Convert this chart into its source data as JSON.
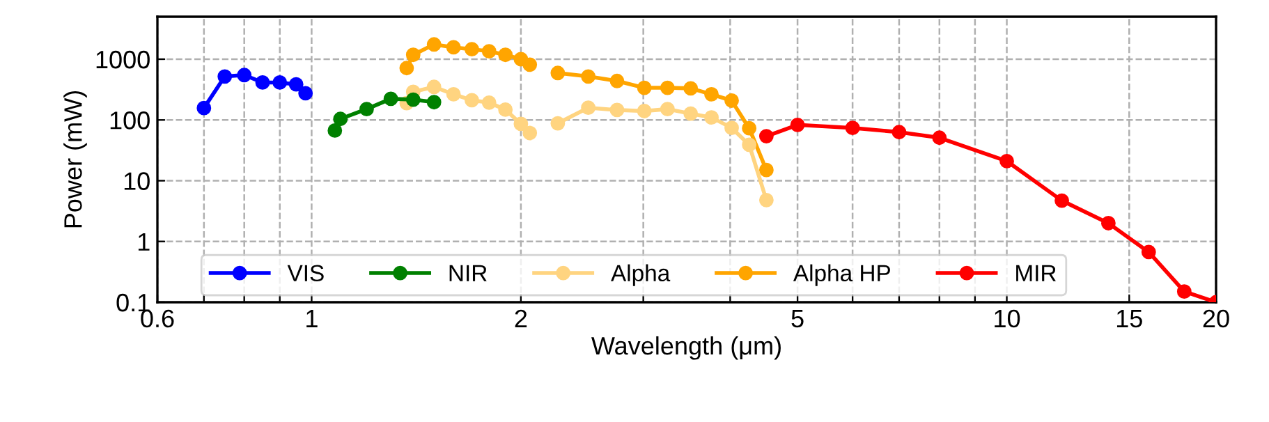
{
  "chart_data": {
    "type": "line",
    "xlabel": "Wavelength (μm)",
    "ylabel": "Power (mW)",
    "log": "xy",
    "marker": "circle",
    "line_style": "solid",
    "grid": true,
    "legend": "bottom",
    "xlim": [
      0.6,
      20
    ],
    "ylim": [
      0.1,
      5000
    ],
    "xticks": [
      0.6,
      {
        "value": 0.7,
        "label": null
      },
      {
        "value": 0.8,
        "label": null
      },
      {
        "value": 0.9,
        "label": null
      },
      1,
      2,
      {
        "value": 3,
        "label": null
      },
      {
        "value": 4,
        "label": null
      },
      5,
      {
        "value": 6,
        "label": null
      },
      {
        "value": 7,
        "label": null
      },
      {
        "value": 8,
        "label": null
      },
      {
        "value": 9,
        "label": null
      },
      10,
      15,
      20
    ],
    "yticks": [
      0.1,
      1,
      10,
      100,
      1000
    ],
    "series": [
      {
        "name": "VIS",
        "color": "#0000ff",
        "x": [
          0.7,
          0.75,
          0.8,
          0.85,
          0.9,
          0.95,
          0.98
        ],
        "values": [
          157,
          519,
          548,
          414,
          414,
          385,
          275
        ]
      },
      {
        "name": "NIR",
        "color": "#008000",
        "x": [
          1.08,
          1.1,
          1.2,
          1.3,
          1.4,
          1.5
        ],
        "values": [
          67,
          104,
          151,
          223,
          216,
          196
        ]
      },
      {
        "name": "Alpha",
        "color": "#ffd480",
        "x": [
          1.37,
          1.4,
          1.5,
          1.6,
          1.7,
          1.8,
          1.9,
          2.0,
          2.06,
          null,
          2.26,
          2.5,
          2.75,
          3.01,
          3.25,
          3.51,
          3.76,
          4.02,
          4.26,
          4.51
        ],
        "values": [
          189,
          290,
          350,
          264,
          211,
          193,
          148,
          86,
          61,
          null,
          88,
          159,
          146,
          140,
          151,
          127,
          110,
          74,
          39,
          4.8
        ]
      },
      {
        "name": "Alpha HP",
        "color": "#ffa500",
        "x": [
          1.37,
          1.4,
          1.5,
          1.6,
          1.7,
          1.8,
          1.9,
          2.0,
          2.06,
          null,
          2.26,
          2.5,
          2.75,
          3.01,
          3.25,
          3.51,
          3.76,
          4.02,
          4.26,
          4.51
        ],
        "values": [
          714,
          1180,
          1750,
          1570,
          1460,
          1350,
          1180,
          1000,
          813,
          null,
          593,
          519,
          438,
          338,
          338,
          331,
          264,
          208,
          73,
          15
        ]
      },
      {
        "name": "MIR",
        "color": "#ff0000",
        "x": [
          4.51,
          5,
          6,
          7,
          8,
          10,
          12,
          14,
          16,
          18,
          20
        ],
        "values": [
          54,
          83,
          74,
          63,
          51,
          21,
          4.7,
          2.0,
          0.67,
          0.15,
          0.1
        ]
      }
    ]
  }
}
